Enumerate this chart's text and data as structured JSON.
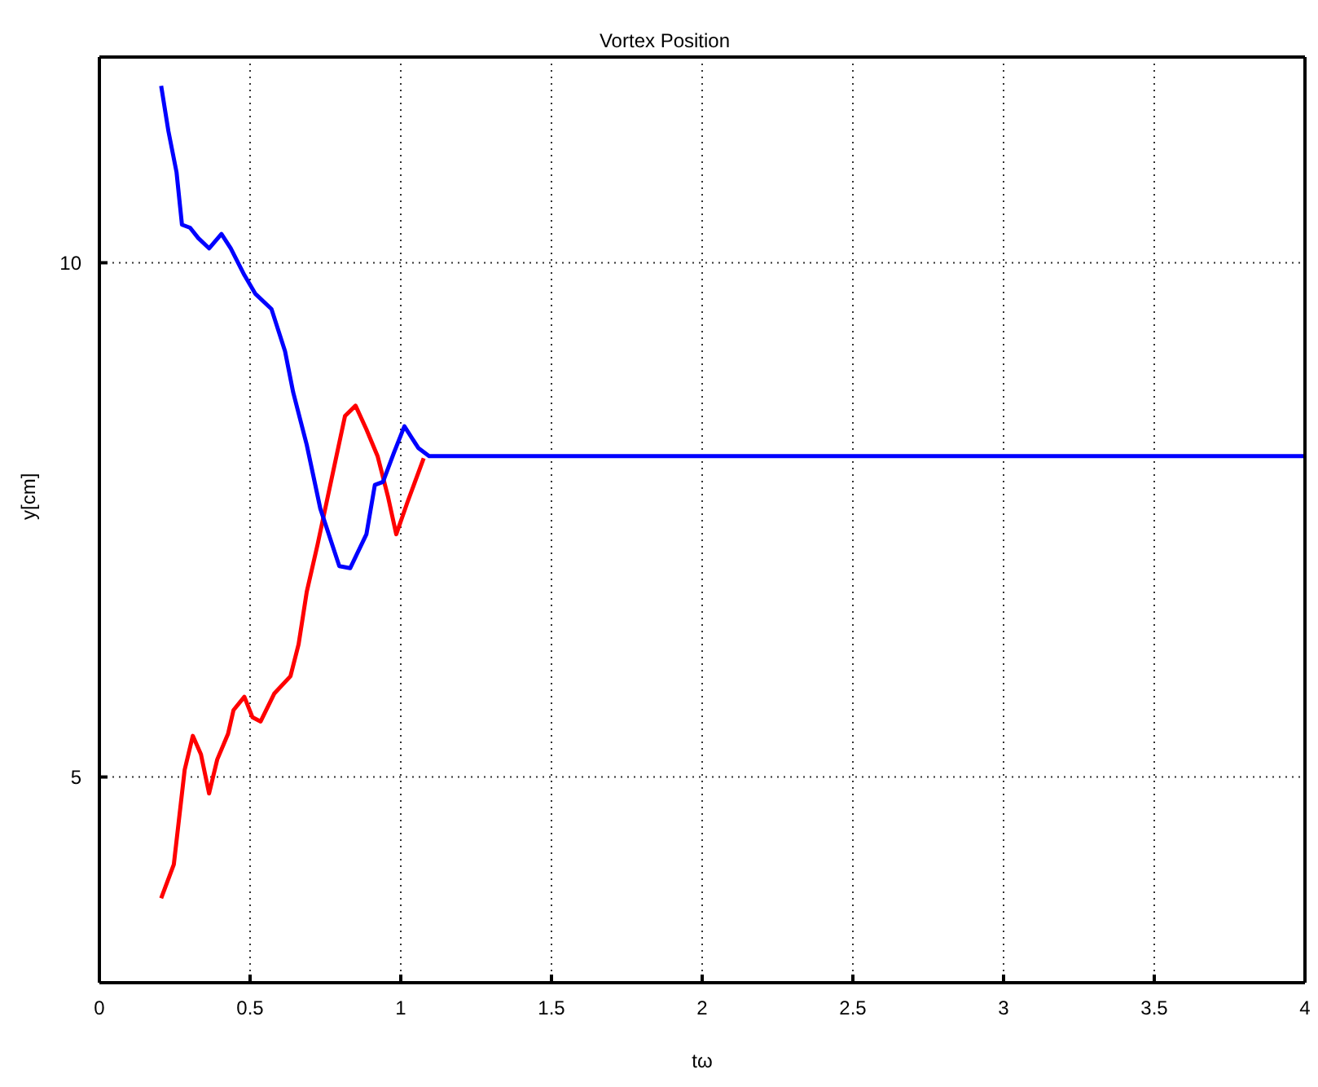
{
  "chart_data": {
    "type": "line",
    "title": "Vortex Position",
    "xlabel": "tω",
    "ylabel": "y[cm]",
    "xlim": [
      0,
      4
    ],
    "xticks": [
      0,
      0.5,
      1,
      1.5,
      2,
      2.5,
      3,
      3.5,
      4
    ],
    "ylim": [
      3,
      12
    ],
    "yticks": [
      5,
      10
    ],
    "grid": true,
    "marker": "none",
    "line_style": "solid",
    "series": [
      {
        "color": "#ff0000",
        "x": [
          0.205,
          0.247,
          0.283,
          0.31,
          0.337,
          0.364,
          0.391,
          0.427,
          0.445,
          0.481,
          0.508,
          0.535,
          0.58,
          0.634,
          0.661,
          0.688,
          0.724,
          0.761,
          0.815,
          0.85,
          0.886,
          0.923,
          0.958,
          0.985,
          1.022,
          1.076
        ],
        "values": [
          3.82,
          4.15,
          5.07,
          5.4,
          5.22,
          4.84,
          5.17,
          5.42,
          5.65,
          5.78,
          5.58,
          5.54,
          5.81,
          5.98,
          6.29,
          6.8,
          7.26,
          7.77,
          8.51,
          8.61,
          8.38,
          8.12,
          7.72,
          7.36,
          7.67,
          8.1
        ]
      },
      {
        "color": "#0000ff",
        "x": [
          0.205,
          0.229,
          0.256,
          0.274,
          0.301,
          0.328,
          0.364,
          0.405,
          0.436,
          0.481,
          0.517,
          0.571,
          0.616,
          0.643,
          0.688,
          0.733,
          0.796,
          0.832,
          0.886,
          0.914,
          0.941,
          0.977,
          1.012,
          1.058,
          1.094,
          4
        ],
        "values": [
          11.72,
          11.28,
          10.88,
          10.37,
          10.34,
          10.24,
          10.14,
          10.28,
          10.14,
          9.88,
          9.7,
          9.55,
          9.14,
          8.74,
          8.23,
          7.61,
          7.05,
          7.03,
          7.36,
          7.84,
          7.87,
          8.15,
          8.41,
          8.2,
          8.12,
          8.12
        ]
      }
    ]
  }
}
